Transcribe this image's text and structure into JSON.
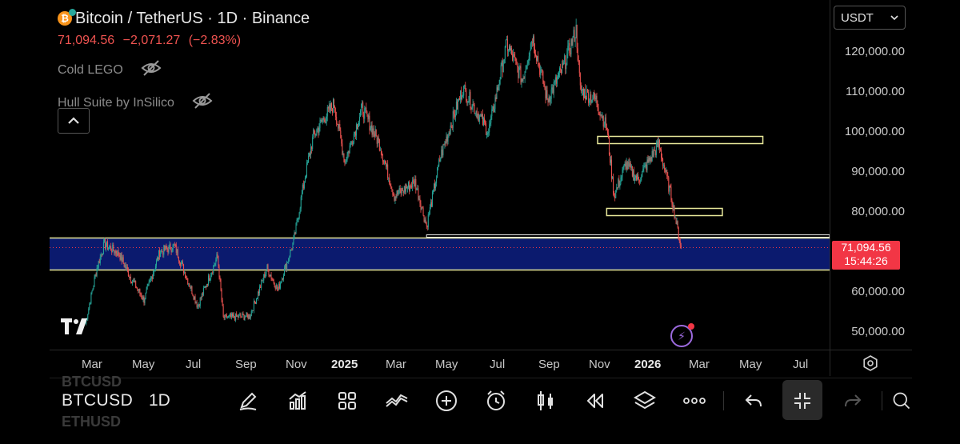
{
  "header": {
    "title": "Bitcoin / TetherUS · 1D · Binance",
    "last_price": "71,094.56",
    "change": "−2,071.27",
    "change_pct": "(−2.83%)"
  },
  "indicators": [
    {
      "name": "Cold LEGO",
      "icon": "eye-off-icon"
    },
    {
      "name": "Hull Suite by InSilico",
      "icon": "eye-off-icon"
    }
  ],
  "currency_select": {
    "value": "USDT"
  },
  "price_axis": {
    "ticks": [
      "120,000.00",
      "110,000.00",
      "100,000.00",
      "90,000.00",
      "80,000.00",
      "60,000.00",
      "50,000.00"
    ],
    "current_price": "71,094.56",
    "countdown": "15:44:26"
  },
  "time_axis": {
    "ticks": [
      "Mar",
      "May",
      "Jul",
      "Sep",
      "Nov",
      "2025",
      "Mar",
      "May",
      "Jul",
      "Sep",
      "Nov",
      "2026",
      "Mar",
      "May",
      "Jul"
    ]
  },
  "toolbar": {
    "symbol": "BTCUSD",
    "interval": "1D",
    "ghost_above": "BTCUSD",
    "ghost_below": "ETHUSD",
    "icons": [
      "drawing-pen-icon",
      "indicators-icon",
      "templates-icon",
      "compare-icon",
      "add-icon",
      "alert-clock-icon",
      "candle-type-icon",
      "replay-icon",
      "layers-icon",
      "more-icon",
      "undo-icon",
      "collapse-icon",
      "redo-icon",
      "search-icon"
    ]
  },
  "colors": {
    "up": "#26a69a",
    "down": "#ef5350",
    "zone_fill": "#0b1a6e",
    "zone_border": "#e8e89a",
    "price_label": "#f23645"
  },
  "chart_data": {
    "type": "candlestick",
    "symbol": "Bitcoin / TetherUS",
    "interval": "1D",
    "x_range": [
      "2024-03",
      "2026-07"
    ],
    "ylim": [
      45000,
      128000
    ],
    "close_path": [
      [
        "2024-02-20",
        52000
      ],
      [
        "2024-03-05",
        66000
      ],
      [
        "2024-03-14",
        72000
      ],
      [
        "2024-04-01",
        69500
      ],
      [
        "2024-04-15",
        63500
      ],
      [
        "2024-05-01",
        58000
      ],
      [
        "2024-05-20",
        70000
      ],
      [
        "2024-06-07",
        71500
      ],
      [
        "2024-07-05",
        56500
      ],
      [
        "2024-07-29",
        69000
      ],
      [
        "2024-08-05",
        53500
      ],
      [
        "2024-09-06",
        54000
      ],
      [
        "2024-09-27",
        66000
      ],
      [
        "2024-10-10",
        60500
      ],
      [
        "2024-10-29",
        72500
      ],
      [
        "2024-11-12",
        89000
      ],
      [
        "2024-11-22",
        99000
      ],
      [
        "2024-12-05",
        103500
      ],
      [
        "2024-12-17",
        107000
      ],
      [
        "2024-12-30",
        92500
      ],
      [
        "2025-01-20",
        106000
      ],
      [
        "2025-02-10",
        97000
      ],
      [
        "2025-02-28",
        84000
      ],
      [
        "2025-03-25",
        87500
      ],
      [
        "2025-04-08",
        76500
      ],
      [
        "2025-04-25",
        94000
      ],
      [
        "2025-05-22",
        111000
      ],
      [
        "2025-06-22",
        100000
      ],
      [
        "2025-07-14",
        122000
      ],
      [
        "2025-08-02",
        113000
      ],
      [
        "2025-08-14",
        124000
      ],
      [
        "2025-09-01",
        108000
      ],
      [
        "2025-09-20",
        116000
      ],
      [
        "2025-10-06",
        125500
      ],
      [
        "2025-10-11",
        110500
      ],
      [
        "2025-10-30",
        108000
      ],
      [
        "2025-11-12",
        101000
      ],
      [
        "2025-11-21",
        84000
      ],
      [
        "2025-12-05",
        92000
      ],
      [
        "2025-12-20",
        88000
      ],
      [
        "2026-01-14",
        97000
      ],
      [
        "2026-01-30",
        83000
      ],
      [
        "2026-02-10",
        71094.56
      ]
    ],
    "levels": [
      {
        "type": "zone",
        "from": 65500,
        "to": 73500
      },
      {
        "type": "line",
        "y": 74000,
        "from_x": "2025-04-08",
        "to_x": "2026-07"
      },
      {
        "type": "box",
        "from": 97500,
        "to": 98500,
        "from_x": "2025-11-01",
        "to_x": "2026-05-20"
      },
      {
        "type": "box",
        "from": 79500,
        "to": 80500,
        "from_x": "2025-11-12",
        "to_x": "2026-04-01"
      }
    ],
    "last_value": 71094.56
  }
}
